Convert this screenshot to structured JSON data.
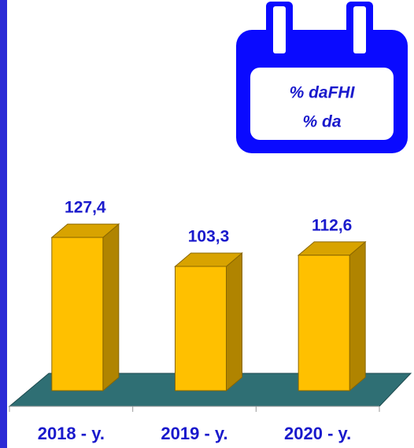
{
  "chart_data": {
    "type": "bar3d",
    "annotation": [
      "% daFHI",
      "% da"
    ],
    "categories": [
      "2018 - y.",
      "2019 - y.",
      "2020 - y."
    ],
    "values": [
      127.4,
      103.3,
      112.6
    ],
    "value_labels": [
      "127,4",
      "103,3",
      "112,6"
    ],
    "color": "#ffc000"
  }
}
